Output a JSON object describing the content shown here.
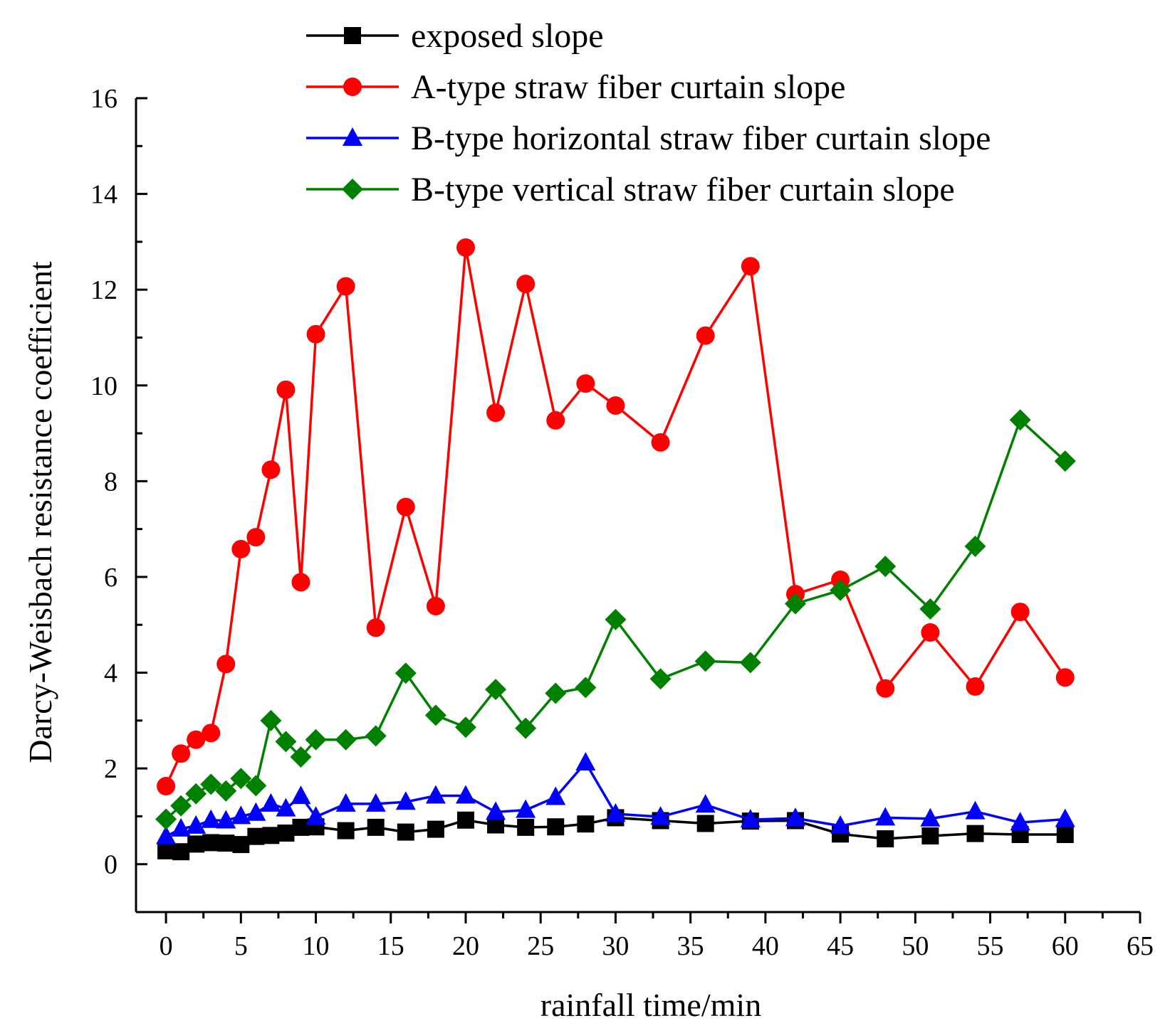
{
  "chart_data": {
    "type": "line",
    "xlabel": "rainfall time/min",
    "ylabel": "Darcy-Weisbach resistance coefficient",
    "xlim": [
      -2,
      65
    ],
    "ylim": [
      -1,
      16
    ],
    "x_ticks": [
      0,
      5,
      10,
      15,
      20,
      25,
      30,
      35,
      40,
      45,
      50,
      55,
      60,
      65
    ],
    "y_ticks": [
      0,
      2,
      4,
      6,
      8,
      10,
      12,
      14,
      16
    ],
    "legend_position": "top-center",
    "x": [
      0,
      1,
      2,
      3,
      4,
      5,
      6,
      7,
      8,
      9,
      10,
      12,
      14,
      16,
      18,
      20,
      22,
      24,
      26,
      28,
      30,
      33,
      36,
      39,
      42,
      45,
      48,
      51,
      54,
      57,
      60
    ],
    "series": [
      {
        "name": "exposed slope",
        "color": "#000000",
        "marker": "square",
        "values": [
          0.28,
          0.26,
          0.42,
          0.45,
          0.44,
          0.41,
          0.58,
          0.6,
          0.65,
          0.77,
          0.78,
          0.7,
          0.77,
          0.67,
          0.73,
          0.92,
          0.82,
          0.77,
          0.78,
          0.84,
          0.97,
          0.91,
          0.85,
          0.9,
          0.91,
          0.63,
          0.53,
          0.59,
          0.64,
          0.62,
          0.62
        ]
      },
      {
        "name": "A-type straw fiber curtain slope",
        "color": "#ff0000",
        "marker": "circle",
        "values": [
          1.63,
          2.31,
          2.6,
          2.74,
          4.18,
          6.58,
          6.83,
          8.24,
          9.91,
          5.89,
          11.07,
          12.07,
          4.94,
          7.46,
          5.39,
          12.88,
          9.43,
          12.12,
          9.27,
          10.04,
          9.58,
          8.81,
          11.04,
          12.49,
          5.64,
          5.94,
          3.67,
          4.84,
          3.71,
          5.27,
          3.9
        ]
      },
      {
        "name": "B-type horizontal straw fiber curtain slope",
        "color": "#0000ff",
        "marker": "triangle",
        "values": [
          0.58,
          0.74,
          0.8,
          0.92,
          0.91,
          1.0,
          1.07,
          1.26,
          1.16,
          1.42,
          0.99,
          1.26,
          1.26,
          1.3,
          1.43,
          1.43,
          1.09,
          1.13,
          1.4,
          2.12,
          1.05,
          0.99,
          1.24,
          0.93,
          0.96,
          0.8,
          0.97,
          0.95,
          1.1,
          0.87,
          0.94
        ]
      },
      {
        "name": "B-type vertical straw fiber curtain slope",
        "color": "#008000",
        "marker": "diamond",
        "values": [
          0.94,
          1.22,
          1.47,
          1.67,
          1.53,
          1.79,
          1.64,
          3.0,
          2.56,
          2.24,
          2.6,
          2.6,
          2.68,
          3.99,
          3.11,
          2.86,
          3.65,
          2.84,
          3.57,
          3.69,
          5.11,
          3.87,
          4.24,
          4.21,
          5.44,
          5.72,
          6.22,
          5.33,
          6.64,
          9.28,
          8.42
        ]
      }
    ]
  }
}
